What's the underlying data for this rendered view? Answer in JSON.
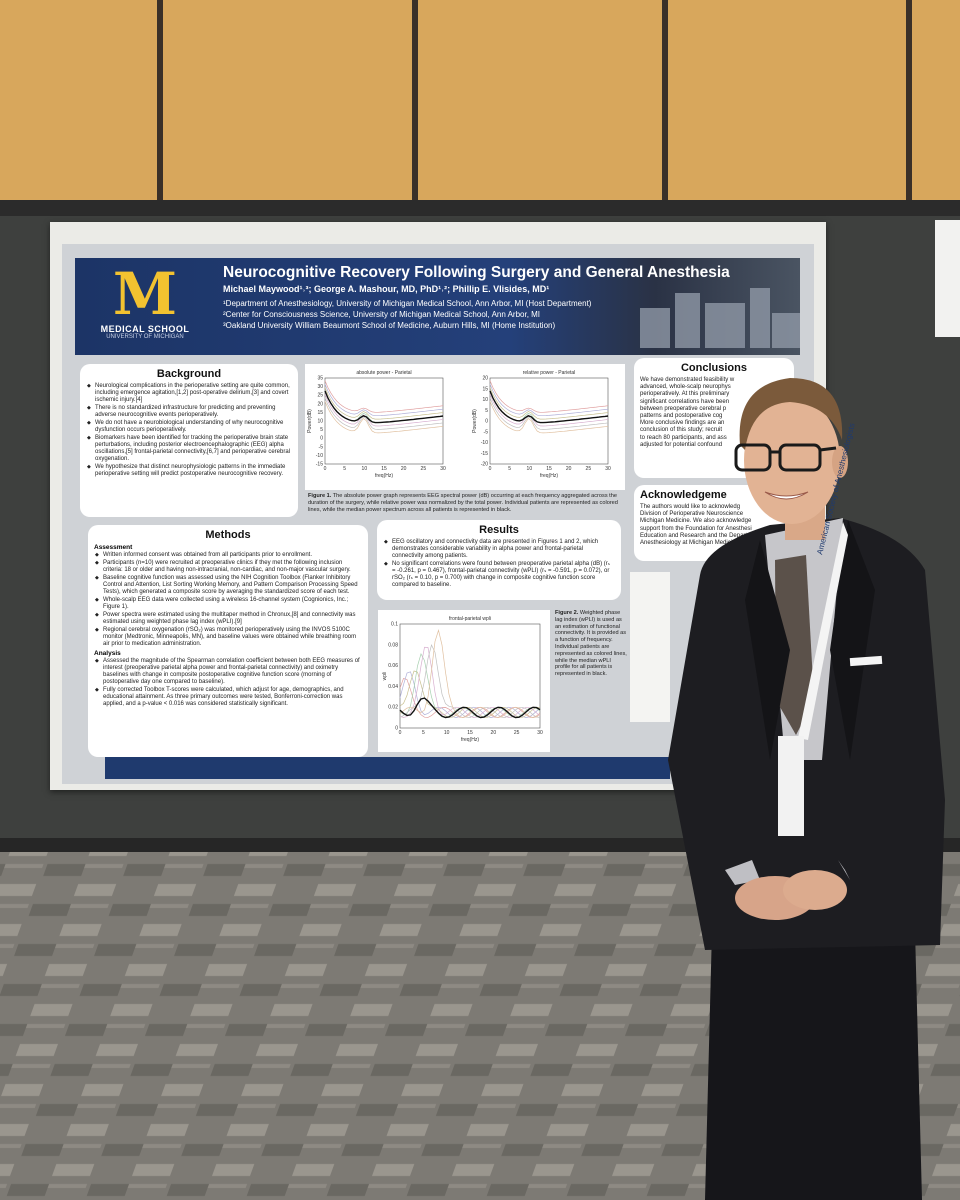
{
  "header": {
    "logo_letter": "M",
    "logo_school": "MEDICAL SCHOOL",
    "logo_university": "UNIVERSITY OF MICHIGAN",
    "title": "Neurocognitive Recovery Following Surgery and General Anesthesia",
    "authors": "Michael Maywood¹˒³; George A. Mashour, MD, PhD¹˒²; Phillip E. Vlisides, MD¹",
    "affiliations": [
      "¹Department of Anesthesiology, University of Michigan Medical School, Ann Arbor, MI (Host Department)",
      "²Center for Consciousness Science, University of Michigan Medical School, Ann Arbor, MI",
      "³Oakland University William Beaumont School of Medicine, Auburn Hills, MI (Home Institution)"
    ]
  },
  "background": {
    "heading": "Background",
    "bullets": [
      "Neurological complications in the perioperative setting are quite common, including emergence agitation,[1,2] post-operative delirium,[3] and covert ischemic injury.[4]",
      "There is no standardized infrastructure for predicting and preventing adverse neurocognitive events perioperatively.",
      "We do not have a neurobiological understanding of why neurocognitive dysfunction occurs perioperatively.",
      "Biomarkers have been identified for tracking the perioperative brain state perturbations, including posterior electroencephalographic (EEG) alpha oscillations,[5] frontal-parietal connectivity,[6,7] and perioperative cerebral oxygenation.",
      "We hypothesize that distinct neurophysiologic patterns in the immediate perioperative setting will predict postoperative neurocognitive recovery."
    ]
  },
  "figure1": {
    "charts": [
      {
        "title": "absolute power - Parietal",
        "xlabel": "freq(Hz)",
        "ylabel": "Power(dB)",
        "xticks": [
          "0",
          "5",
          "10",
          "15",
          "20",
          "25",
          "30"
        ],
        "yticks": [
          "35",
          "30",
          "25",
          "20",
          "15",
          "10",
          "5",
          "0",
          "-5",
          "-10",
          "-15"
        ]
      },
      {
        "title": "relative power - Parietal",
        "xlabel": "freq(Hz)",
        "ylabel": "Power(dB)",
        "xticks": [
          "0",
          "5",
          "10",
          "15",
          "20",
          "25",
          "30"
        ],
        "yticks": [
          "20",
          "15",
          "10",
          "5",
          "0",
          "-5",
          "-10",
          "-15",
          "-20"
        ]
      }
    ],
    "caption_label": "Figure 1.",
    "caption": "The absolute power graph represents EEG spectral power (dB) occurring at each frequency aggregated across the duration of the surgery, while relative power was normalized by the total power. Individual patients are represented as colored lines, while the median power spectrum across all patients is represented in black."
  },
  "methods": {
    "heading": "Methods",
    "sections": [
      {
        "subheading": "Assessment",
        "bullets": [
          "Written informed consent was obtained from all participants prior to enrollment.",
          "Participants (n=10) were recruited at preoperative clinics if they met the following inclusion criteria: 18 or older and having non-intracranial, non-cardiac, and non-major vascular surgery.",
          "Baseline cognitive function was assessed using the NIH Cognition Toolbox (Flanker Inhibitory Control and Attention, List Sorting Working Memory, and Pattern Comparison Processing Speed Tests), which generated a composite score by averaging the standardized score of each test.",
          "Whole-scalp EEG data were collected using a wireless 16-channel system (Cognionics, Inc.; Figure 1).",
          "Power spectra were estimated using the multitaper method in Chronux,[8] and connectivity was estimated using weighted phase lag index (wPLI).[9]",
          "Regional cerebral oxygenation (rSO₂) was monitored perioperatively using the INVOS 5100C monitor (Medtronic, Minneapolis, MN), and baseline values were obtained while breathing room air prior to medication administration."
        ]
      },
      {
        "subheading": "Analysis",
        "bullets": [
          "Assessed the magnitude of the Spearman correlation coefficient between both EEG measures of interest (preoperative parietal alpha power and frontal-parietal connectivity) and oximetry baselines with change in composite postoperative cognitive function score (morning of postoperative day one compared to baseline).",
          "Fully corrected Toolbox T-scores were calculated, which adjust for age, demographics, and educational attainment. As three primary outcomes were tested, Bonferroni-correction was applied, and a p-value < 0.016 was considered statistically significant."
        ]
      }
    ]
  },
  "results": {
    "heading": "Results",
    "bullets": [
      "EEG oscillatory and connectivity data are presented in Figures 1 and 2, which demonstrates considerable variability in alpha power and frontal-parietal connectivity among patients.",
      "No significant correlations were found between preoperative parietal alpha (dB) (rₛ = -0.261, p = 0.467), frontal-parietal connectivity (wPLI) (rₛ = -0.591, p = 0.072), or rSO₂ (rₛ = 0.10, p = 0.700) with change in composite cognitive function score compared to baseline."
    ]
  },
  "figure2": {
    "chart": {
      "title": "frontal-parietal wpli",
      "xlabel": "freq(Hz)",
      "ylabel": "wpli",
      "xticks": [
        "0",
        "5",
        "10",
        "15",
        "20",
        "25",
        "30"
      ],
      "yticks": [
        "0.1",
        "0.08",
        "0.06",
        "0.04",
        "0.02",
        "0"
      ]
    },
    "caption_label": "Figure 2.",
    "caption": "Weighted phase lag index (wPLI) is used as an estimation of functional connectivity. It is provided as a function of frequency. Individual patients are represented as colored lines, while the median wPLI profile for all patients is represented in black."
  },
  "conclusions": {
    "heading": "Conclusions",
    "lines": [
      "We have demonstrated feasibility w",
      "advanced, whole-scalp neurophys",
      "perioperatively. At this preliminary",
      "significant correlations have been",
      "between preoperative cerebral p",
      "patterns and postoperative cog",
      "More conclusive findings are an",
      "conclusion of this study; recruit",
      "to reach 80 participants, and ass",
      "adjusted for potential confound"
    ]
  },
  "acknowledgements": {
    "heading": "Acknowledgeme",
    "lines": [
      "The authors would like to acknowledg",
      "Division of Perioperative Neuroscience",
      "Michigan Medicine. We also acknowledge",
      "support from the Foundation for Anesthesi",
      "Education and Research and the Depart",
      "Anesthesiology at Michigan Medicine"
    ]
  },
  "badge": "American Society of Anesthesiologists"
}
